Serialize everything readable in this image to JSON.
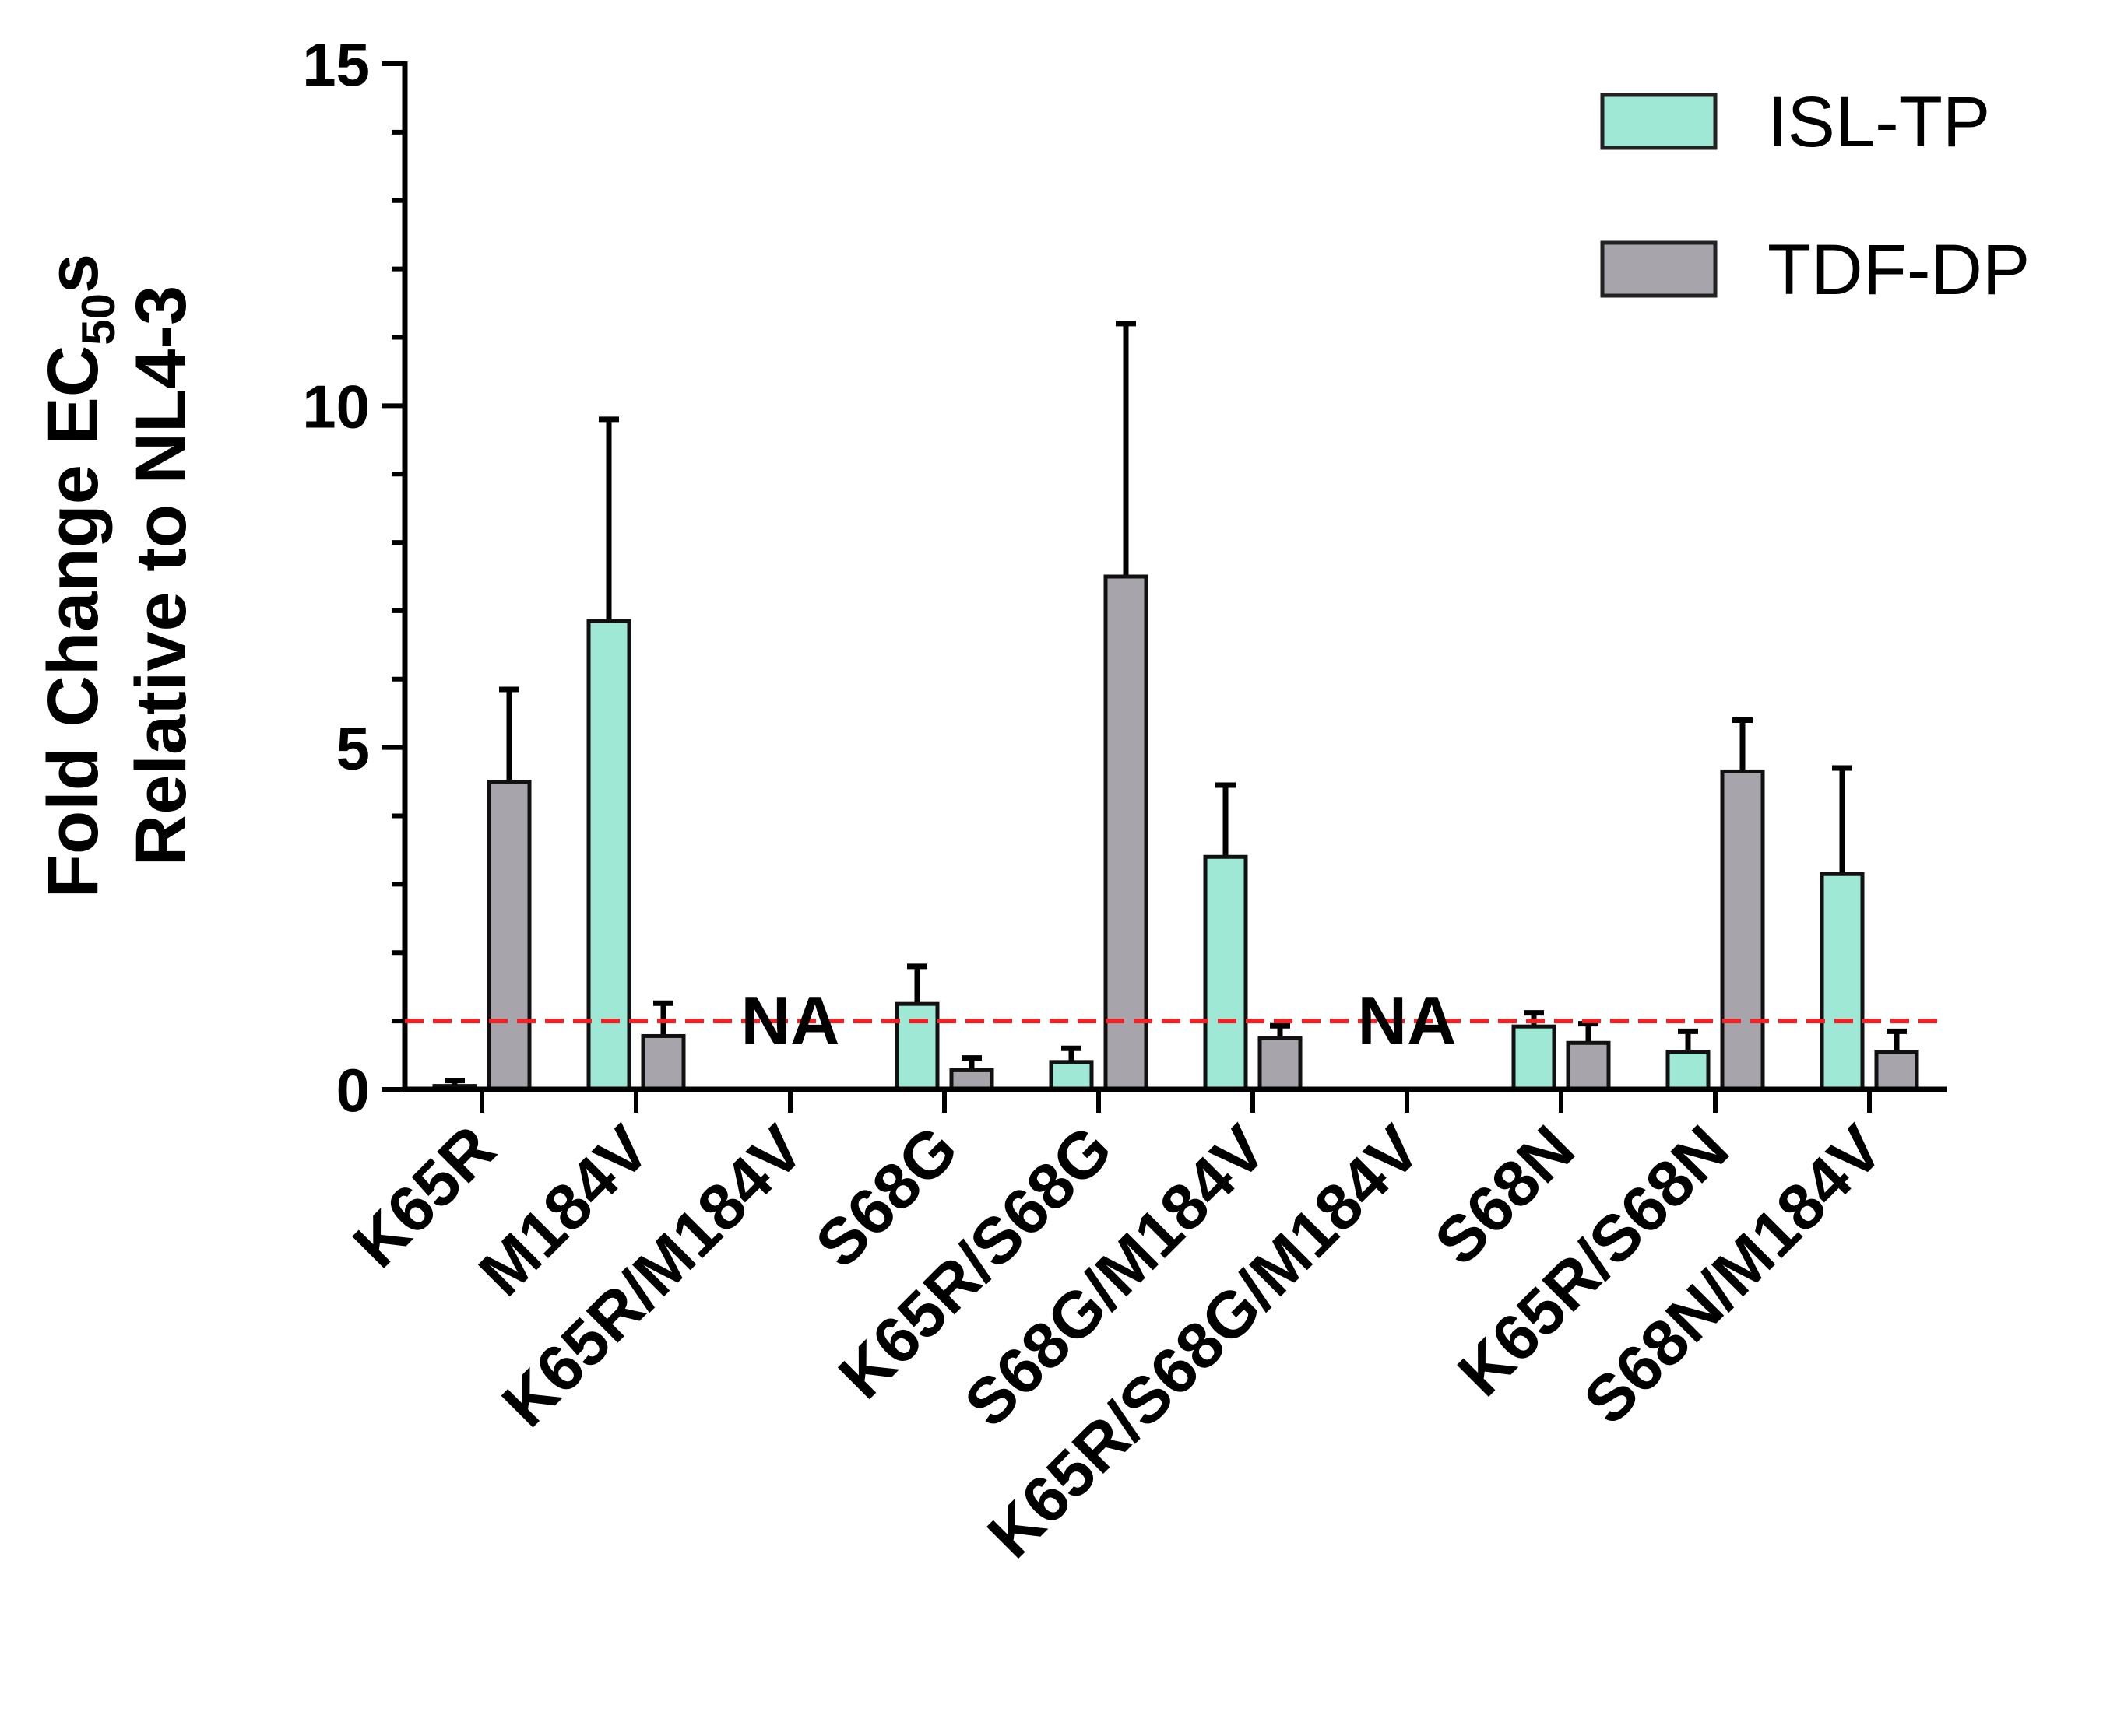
{
  "chart_data": {
    "type": "bar",
    "categories": [
      "K65R",
      "M184V",
      "K65R/M184V",
      "S68G",
      "K65R/S68G",
      "S68G/M184V",
      "K65R/S68G/M184V",
      "S68N",
      "K65R/S68N",
      "S68N/M184V"
    ],
    "series": [
      {
        "name": "ISL-TP",
        "color": "#9fe8d6",
        "values": [
          0.05,
          6.85,
          null,
          1.25,
          0.4,
          3.4,
          null,
          0.92,
          0.55,
          3.15
        ],
        "errors": [
          0.08,
          2.95,
          null,
          0.55,
          0.2,
          1.05,
          null,
          0.2,
          0.3,
          1.55
        ]
      },
      {
        "name": "TDF-DP",
        "color": "#a7a5ab",
        "values": [
          4.5,
          0.78,
          null,
          0.28,
          7.5,
          0.75,
          null,
          0.68,
          4.65,
          0.55
        ],
        "errors": [
          1.35,
          0.48,
          null,
          0.18,
          3.7,
          0.18,
          null,
          0.28,
          0.75,
          0.3
        ]
      }
    ],
    "na_label": "NA",
    "na_categories": [
      "K65R/M184V",
      "K65R/S68G/M184V"
    ],
    "title": "",
    "xlabel": "",
    "ylabel": {
      "line1_prefix": "Fold Change EC",
      "line1_subscript": "50",
      "line1_suffix": "s",
      "line2": "Relative to NL4-3"
    },
    "ylim": [
      0,
      15
    ],
    "yticks": [
      "0",
      "5",
      "10",
      "15"
    ],
    "y_minor_step": 1,
    "reference_line": {
      "value": 1,
      "color": "#e8262a",
      "style": "dashed"
    },
    "grid": false,
    "legend_position": "top-right"
  }
}
